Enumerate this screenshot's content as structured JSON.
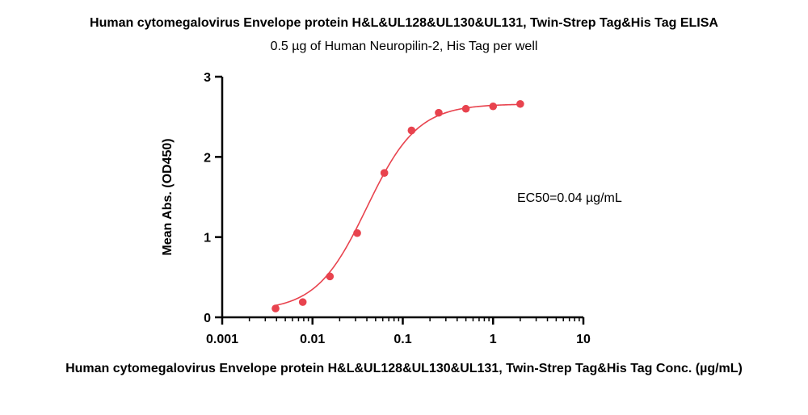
{
  "chart_data": {
    "type": "scatter",
    "title": "Human cytomegalovirus Envelope protein H&L&UL128&UL130&UL131, Twin-Strep Tag&His Tag ELISA",
    "subtitle": "0.5 µg of Human Neuropilin-2, His Tag per well",
    "xlabel": "Human cytomegalovirus Envelope protein H&L&UL128&UL130&UL131, Twin-Strep Tag&His Tag Conc. (µg/mL)",
    "ylabel": "Mean Abs. (OD450)",
    "xscale": "log",
    "xlim": [
      0.001,
      10
    ],
    "ylim": [
      0,
      3
    ],
    "x_ticks": [
      "0.001",
      "0.01",
      "0.1",
      "1",
      "10"
    ],
    "y_ticks": [
      "0",
      "1",
      "2",
      "3"
    ],
    "annotation": "EC50=0.04 µg/mL",
    "grid": false,
    "colors": {
      "points": "#e8434e",
      "curve": "#e8434e",
      "axis": "#000000"
    },
    "series": [
      {
        "x": [
          0.0039,
          0.0078,
          0.0156,
          0.03125,
          0.0625,
          0.125,
          0.25,
          0.5,
          1,
          2
        ],
        "y": [
          0.11,
          0.19,
          0.51,
          1.05,
          1.8,
          2.33,
          2.55,
          2.6,
          2.63,
          2.66
        ]
      }
    ],
    "fit": {
      "bottom": 0.08,
      "top": 2.66,
      "ec50": 0.04,
      "hill": 1.55
    }
  }
}
